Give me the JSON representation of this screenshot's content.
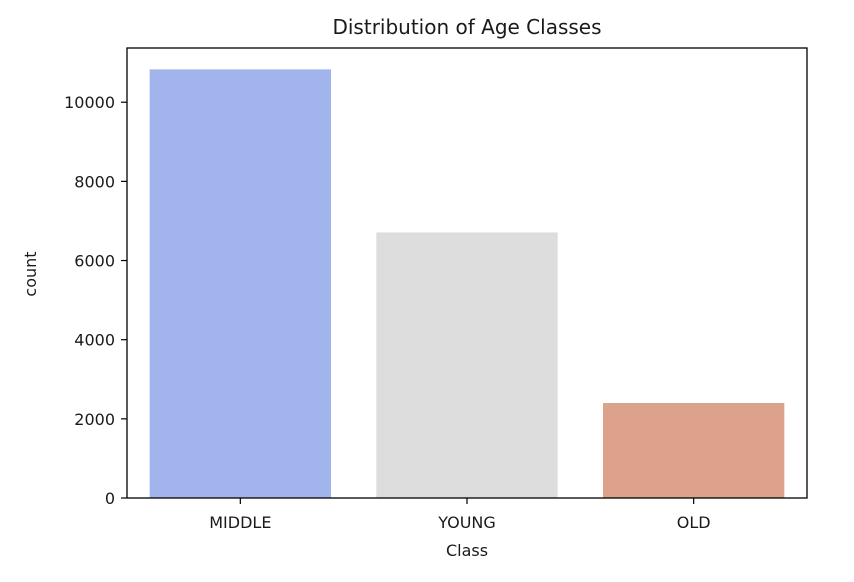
{
  "chart_data": {
    "type": "bar",
    "title": "Distribution of Age Classes",
    "xlabel": "Class",
    "ylabel": "count",
    "categories": [
      "MIDDLE",
      "YOUNG",
      "OLD"
    ],
    "values": [
      10830,
      6710,
      2400
    ],
    "colors": [
      "#a1b4ec",
      "#dddddd",
      "#dca28b"
    ],
    "ylim": [
      0,
      11370
    ],
    "yticks": [
      0,
      2000,
      4000,
      6000,
      8000,
      10000
    ],
    "ytick_labels": [
      "0",
      "2000",
      "4000",
      "6000",
      "8000",
      "10000"
    ],
    "grid": false,
    "legend": "none"
  }
}
